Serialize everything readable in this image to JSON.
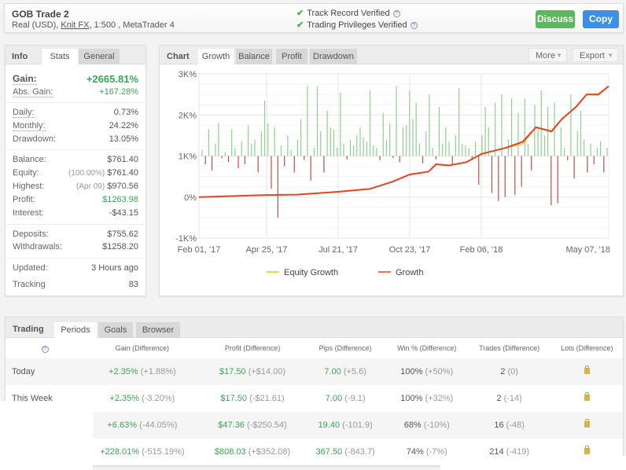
{
  "header": {
    "title": "GOB Trade 2",
    "account_type": "Real (USD),",
    "broker": "Knit FX",
    "details": ", 1:500 , MetaTrader 4",
    "verifications": [
      "Track Record Verified",
      "Trading Privileges Verified"
    ],
    "discuss_label": "Discuss",
    "copy_label": "Copy",
    "colors": {
      "discuss": "#5cb85c",
      "copy": "#3d8ee8",
      "check": "#4caf50"
    }
  },
  "info": {
    "tabs": [
      "Info",
      "Stats",
      "General"
    ],
    "active_tab": "Stats",
    "gain": {
      "label": "Gain:",
      "value": "+2665.81%"
    },
    "abs_gain": {
      "label": "Abs. Gain:",
      "value": "+167.28%"
    },
    "daily": {
      "label": "Daily:",
      "value": "0.73%"
    },
    "monthly": {
      "label": "Monthly:",
      "value": "24.22%"
    },
    "drawdown": {
      "label": "Drawdown:",
      "value": "13.05%"
    },
    "balance": {
      "label": "Balance:",
      "value": "$761.40"
    },
    "equity": {
      "label": "Equity:",
      "detail": "(100.00%)",
      "value": "$761.40"
    },
    "highest": {
      "label": "Highest:",
      "detail": "(Apr 09)",
      "value": "$970.56"
    },
    "profit": {
      "label": "Profit:",
      "value": "$1263.98"
    },
    "interest": {
      "label": "Interest:",
      "value": "-$43.15"
    },
    "deposits": {
      "label": "Deposits:",
      "value": "$755.62"
    },
    "withdrawals": {
      "label": "Withdrawals:",
      "value": "$1258.20"
    },
    "updated": {
      "label": "Updated:",
      "value": "3 Hours ago"
    },
    "tracking": {
      "label": "Tracking",
      "value": "83"
    }
  },
  "chart_panel": {
    "title": "Chart",
    "tabs": [
      "Growth",
      "Balance",
      "Profit",
      "Drawdown"
    ],
    "active_tab": "Growth",
    "more_label": "More",
    "export_label": "Export"
  },
  "chart_data": {
    "type": "line",
    "y_ticks": [
      "3K%",
      "2K%",
      "1K%",
      "0%",
      "-1K%"
    ],
    "ylim": [
      -1000,
      3000
    ],
    "x_ticks": [
      "Feb 01, '17",
      "Apr 25, '17",
      "Jul 21, '17",
      "Oct 23, '17",
      "Feb 06, '18",
      "May 07, '18"
    ],
    "grid": true,
    "legend_placement": "bottom",
    "series": [
      {
        "name": "Equity Growth",
        "color": "#f0c020",
        "x": [
          "2017-02-01",
          "2017-04-25",
          "2017-06-01",
          "2017-07-21",
          "2017-09-01",
          "2017-10-01",
          "2017-10-23",
          "2017-11-20",
          "2017-12-01",
          "2017-12-20",
          "2018-01-15",
          "2018-02-06",
          "2018-02-25",
          "2018-03-10",
          "2018-03-20",
          "2018-04-01",
          "2018-04-09",
          "2018-04-20",
          "2018-04-28",
          "2018-05-07",
          "2018-05-15"
        ],
        "y": [
          0,
          50,
          60,
          130,
          200,
          380,
          550,
          620,
          800,
          770,
          850,
          1050,
          1200,
          1300,
          1700,
          1580,
          1900,
          2200,
          2500,
          2480,
          2700
        ]
      },
      {
        "name": "Growth",
        "color": "#e8431f",
        "x": [
          "2017-02-01",
          "2017-04-25",
          "2017-06-01",
          "2017-07-21",
          "2017-09-01",
          "2017-10-01",
          "2017-10-23",
          "2017-11-20",
          "2017-12-01",
          "2017-12-20",
          "2018-01-15",
          "2018-02-06",
          "2018-02-25",
          "2018-03-10",
          "2018-03-20",
          "2018-04-01",
          "2018-04-09",
          "2018-04-20",
          "2018-04-28",
          "2018-05-07",
          "2018-05-15"
        ],
        "y": [
          0,
          50,
          60,
          130,
          200,
          380,
          550,
          620,
          800,
          770,
          850,
          1050,
          1200,
          1350,
          1700,
          1600,
          1900,
          2200,
          2500,
          2500,
          2700
        ]
      }
    ],
    "daily_bars": {
      "baseline": 1000,
      "positive_color": "#8fd08f",
      "negative_color": "#c84a4a",
      "values": [
        150,
        -200,
        650,
        -350,
        300,
        800,
        -50,
        100,
        -150,
        650,
        200,
        -300,
        350,
        -200,
        750,
        300,
        400,
        -400,
        600,
        1350,
        800,
        -800,
        700,
        -1500,
        250,
        -250,
        500,
        150,
        -400,
        400,
        900,
        -100,
        1700,
        -600,
        200,
        1700,
        600,
        -400,
        1100,
        700,
        650,
        200,
        1550,
        300,
        -80,
        400,
        250,
        500,
        700,
        450,
        350,
        1600,
        250,
        200,
        -100,
        1050,
        400,
        800,
        -50,
        1700,
        -150,
        700,
        750,
        1600,
        900,
        1300,
        300,
        -180,
        600,
        1500,
        200,
        -80,
        1200,
        300,
        700,
        350,
        -200,
        500,
        1650,
        300,
        250,
        200,
        -100,
        350,
        -700,
        500,
        1200,
        700,
        -900,
        1300,
        -1100,
        1500,
        -1000,
        400,
        1400,
        -950,
        1050,
        -750,
        1400,
        300,
        -350,
        1250,
        700,
        1600,
        500,
        1200,
        -1200,
        1300,
        -1150,
        700,
        200,
        -100,
        1500,
        -550,
        600,
        1100,
        400,
        -400,
        300,
        -200,
        200,
        350,
        -400,
        200
      ]
    }
  },
  "trading": {
    "title": "Trading",
    "tabs": [
      "Periods",
      "Goals",
      "Browser"
    ],
    "active_tab": "Periods",
    "columns": [
      "Gain (Difference)",
      "Profit (Difference)",
      "Pips (Difference)",
      "Win % (Difference)",
      "Trades (Difference)",
      "Lots (Difference)"
    ],
    "rows": [
      {
        "label": "Today",
        "gain": "+2.35%",
        "gain_d": "(+1.88%)",
        "profit": "$17.50",
        "profit_d": "(+$14.00)",
        "pips": "7.00",
        "pips_d": "(+5.6)",
        "win": "100%",
        "win_d": "(+50%)",
        "trades": "2",
        "trades_d": "(0)"
      },
      {
        "label": "This Week",
        "gain": "+2.35%",
        "gain_d": "(-3.20%)",
        "profit": "$17.50",
        "profit_d": "(-$21.61)",
        "pips": "7.00",
        "pips_d": "(-9.1)",
        "win": "100%",
        "win_d": "(+32%)",
        "trades": "2",
        "trades_d": "(-14)"
      },
      {
        "label": "",
        "gain": "+6.63%",
        "gain_d": "(-44.05%)",
        "profit": "$47.36",
        "profit_d": "(-$250.54)",
        "pips": "19.40",
        "pips_d": "(-101.9)",
        "win": "68%",
        "win_d": "(-10%)",
        "trades": "16",
        "trades_d": "(-48)"
      },
      {
        "label": "",
        "gain": "+228.01%",
        "gain_d": "(-515.19%)",
        "profit": "$808.03",
        "profit_d": "(+$352.08)",
        "pips": "367.50",
        "pips_d": "(-843.7)",
        "win": "74%",
        "win_d": "(-7%)",
        "trades": "214",
        "trades_d": "(-419)"
      }
    ]
  }
}
